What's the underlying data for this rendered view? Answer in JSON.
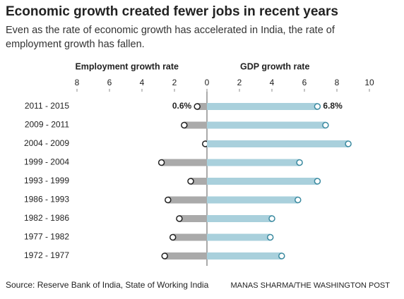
{
  "chart_data": {
    "type": "lollipop",
    "title": "Economic growth created fewer jobs in recent years",
    "subtitle": [
      "Even as the rate of economic growth has accelerated in India, the rate of",
      "employment growth has fallen."
    ],
    "source": "Source: Reserve Bank of India, State of Working India",
    "credit": "MANAS SHARMA/THE WASHINGTON POST",
    "categories": [
      "2011 - 2015",
      "2009 - 2011",
      "2004 - 2009",
      "1999 - 2004",
      "1993 - 1999",
      "1986 - 1993",
      "1982 - 1986",
      "1977 - 1982",
      "1972 - 1977"
    ],
    "series": [
      {
        "name": "Employment growth rate",
        "color": "#aaaaaa",
        "marker_color": "#222222",
        "values": [
          0.6,
          1.4,
          0.1,
          2.8,
          1.0,
          2.4,
          1.7,
          2.1,
          2.6
        ],
        "value_labels": [
          "0.6%",
          null,
          null,
          null,
          null,
          null,
          null,
          null,
          null
        ],
        "xlim": [
          8,
          0
        ],
        "xticks": [
          8,
          6,
          4,
          2
        ]
      },
      {
        "name": "GDP growth rate",
        "color": "#a9d0dc",
        "marker_color": "#3b8aa0",
        "values": [
          6.8,
          7.3,
          8.7,
          5.7,
          6.8,
          5.6,
          4.0,
          3.9,
          4.6
        ],
        "value_labels": [
          "6.8%",
          null,
          null,
          null,
          null,
          null,
          null,
          null,
          null
        ],
        "xlim": [
          0,
          10
        ],
        "xticks": [
          0,
          2,
          4,
          6,
          8,
          10
        ]
      }
    ]
  }
}
